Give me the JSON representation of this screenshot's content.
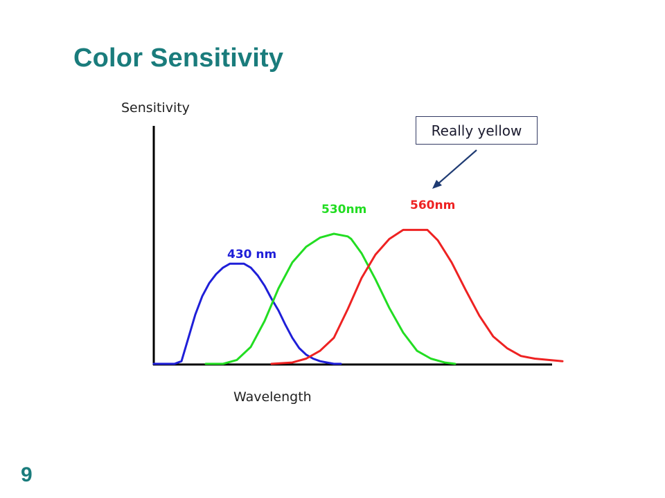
{
  "slide": {
    "title": "Color Sensitivity",
    "page_number": "9",
    "callout": "Really yellow"
  },
  "chart_data": {
    "type": "line",
    "ylabel": "Sensitivity",
    "xlabel": "Wavelength",
    "grid": false,
    "series": [
      {
        "name": "430 nm",
        "color": "#1f1fd8",
        "x": [
          0,
          30,
          40,
          50,
          60,
          70,
          80,
          90,
          100,
          110,
          120,
          130,
          140,
          150,
          160,
          170,
          180,
          190,
          200,
          210,
          220,
          230,
          240,
          250,
          260,
          270
        ],
        "y": [
          0,
          0,
          0.02,
          0.2,
          0.38,
          0.52,
          0.62,
          0.69,
          0.74,
          0.77,
          0.77,
          0.77,
          0.74,
          0.68,
          0.6,
          0.5,
          0.41,
          0.3,
          0.2,
          0.12,
          0.07,
          0.04,
          0.02,
          0.01,
          0,
          0
        ]
      },
      {
        "name": "530nm",
        "color": "#22dd22",
        "x": [
          75,
          100,
          120,
          140,
          160,
          180,
          200,
          220,
          240,
          260,
          280,
          285,
          300,
          320,
          340,
          360,
          380,
          400,
          420,
          435
        ],
        "y": [
          0,
          0,
          0.03,
          0.13,
          0.33,
          0.58,
          0.78,
          0.9,
          0.97,
          1.0,
          0.98,
          0.96,
          0.85,
          0.65,
          0.43,
          0.24,
          0.1,
          0.04,
          0.01,
          0
        ]
      },
      {
        "name": "560nm",
        "color": "#ee2222",
        "x": [
          170,
          200,
          220,
          240,
          260,
          280,
          300,
          320,
          340,
          360,
          380,
          395,
          410,
          430,
          450,
          470,
          490,
          510,
          530,
          550,
          570,
          590
        ],
        "y": [
          0,
          0.01,
          0.04,
          0.1,
          0.2,
          0.42,
          0.66,
          0.84,
          0.96,
          1.03,
          1.03,
          1.03,
          0.95,
          0.78,
          0.57,
          0.37,
          0.21,
          0.12,
          0.06,
          0.04,
          0.03,
          0.02
        ]
      }
    ]
  }
}
